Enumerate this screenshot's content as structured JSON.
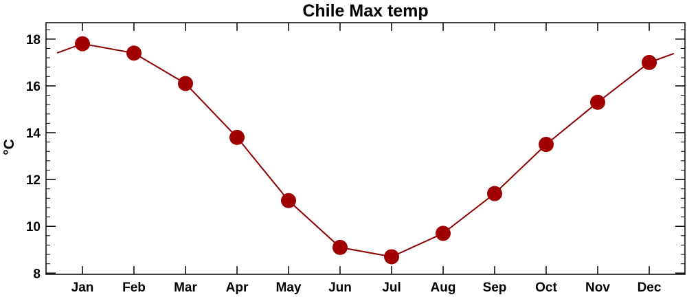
{
  "chart_data": {
    "type": "line",
    "title": "Chile Max temp",
    "ylabel": "°C",
    "xlabel": "",
    "categories": [
      "Jan",
      "Feb",
      "Mar",
      "Apr",
      "May",
      "Jun",
      "Jul",
      "Aug",
      "Sep",
      "Oct",
      "Nov",
      "Dec"
    ],
    "series": [
      {
        "values": [
          17.8,
          17.4,
          16.1,
          13.8,
          11.1,
          9.1,
          8.7,
          9.7,
          11.4,
          13.5,
          15.3,
          17.0
        ]
      }
    ],
    "ylim": [
      7.95,
      18.7
    ],
    "yticks": [
      8,
      10,
      12,
      14,
      16,
      18
    ],
    "grid": false,
    "legend": "none",
    "colors": {
      "line": "#8b0000",
      "marker": "#a00000",
      "axis": "#000000"
    }
  }
}
